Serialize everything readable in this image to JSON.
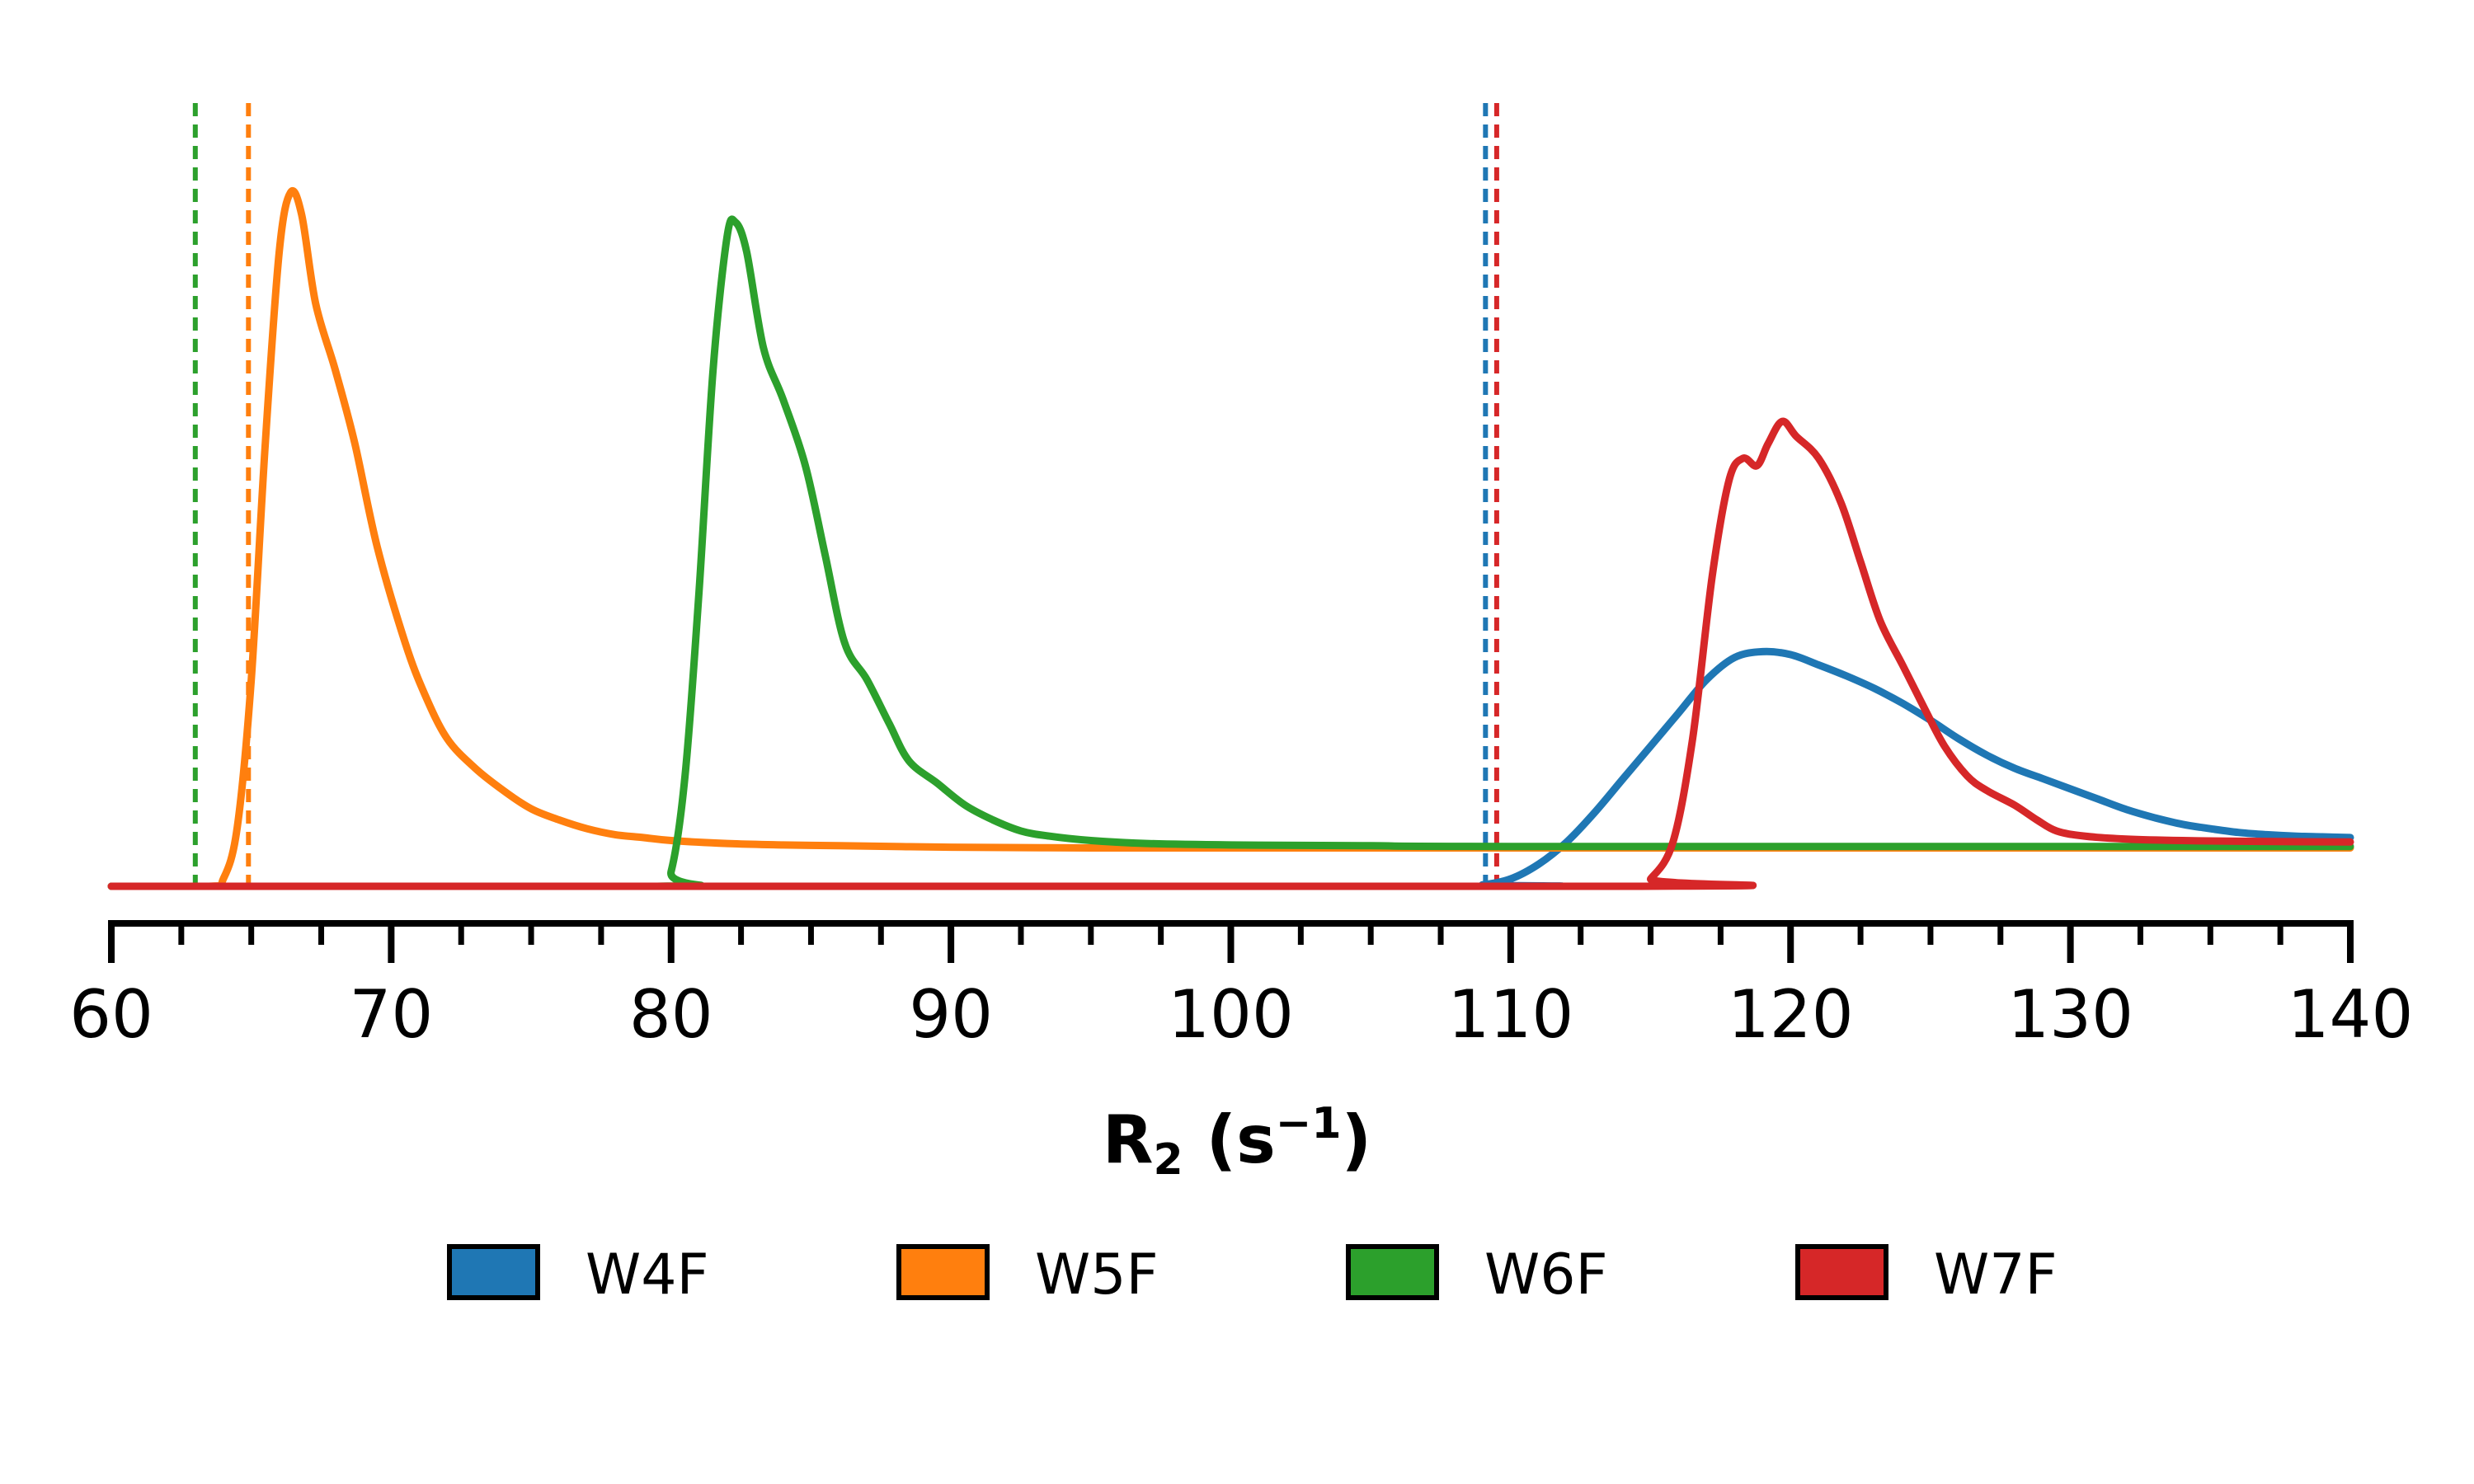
{
  "chart_data": {
    "type": "area",
    "xlabel": {
      "base": "R",
      "subscript": "2",
      "open": " (s",
      "superscript": "−1",
      "close": ")"
    },
    "xlim": [
      60,
      140
    ],
    "x_ticks": [
      60,
      70,
      80,
      90,
      100,
      110,
      120,
      130,
      140
    ],
    "x_minor_step": 2.5,
    "y_axis_visible": false,
    "grid": false,
    "legend_position": "bottom",
    "series": [
      {
        "name": "W4F",
        "color": "#1f77b4",
        "reference_line": 109.1,
        "points": [
          [
            60,
            0
          ],
          [
            108,
            0
          ],
          [
            109,
            0.002
          ],
          [
            110,
            0.01
          ],
          [
            111,
            0.03
          ],
          [
            112,
            0.06
          ],
          [
            113,
            0.1
          ],
          [
            114,
            0.145
          ],
          [
            115,
            0.19
          ],
          [
            116,
            0.235
          ],
          [
            117,
            0.28
          ],
          [
            118,
            0.31
          ],
          [
            119,
            0.318
          ],
          [
            120,
            0.314
          ],
          [
            121,
            0.3
          ],
          [
            122,
            0.285
          ],
          [
            123,
            0.268
          ],
          [
            124,
            0.248
          ],
          [
            125,
            0.225
          ],
          [
            126,
            0.2
          ],
          [
            127,
            0.178
          ],
          [
            128,
            0.16
          ],
          [
            129,
            0.146
          ],
          [
            130,
            0.132
          ],
          [
            131,
            0.118
          ],
          [
            132,
            0.104
          ],
          [
            133,
            0.093
          ],
          [
            134,
            0.084
          ],
          [
            135,
            0.078
          ],
          [
            136,
            0.073
          ],
          [
            137,
            0.07
          ],
          [
            138,
            0.068
          ],
          [
            139,
            0.067
          ],
          [
            140,
            0.066
          ]
        ]
      },
      {
        "name": "W5F",
        "color": "#ff7f0e",
        "reference_line": 64.9,
        "points": [
          [
            60,
            0
          ],
          [
            63.5,
            0
          ],
          [
            64,
            0.01
          ],
          [
            64.5,
            0.08
          ],
          [
            65,
            0.28
          ],
          [
            65.5,
            0.6
          ],
          [
            66,
            0.86
          ],
          [
            66.4,
            0.94
          ],
          [
            66.8,
            0.91
          ],
          [
            67.3,
            0.79
          ],
          [
            68,
            0.7
          ],
          [
            68.7,
            0.6
          ],
          [
            69.5,
            0.46
          ],
          [
            70.5,
            0.33
          ],
          [
            71.2,
            0.26
          ],
          [
            72,
            0.2
          ],
          [
            73,
            0.16
          ],
          [
            74,
            0.13
          ],
          [
            75,
            0.105
          ],
          [
            76,
            0.09
          ],
          [
            77,
            0.078
          ],
          [
            78,
            0.07
          ],
          [
            79,
            0.066
          ],
          [
            80,
            0.062
          ],
          [
            82,
            0.058
          ],
          [
            84,
            0.056
          ],
          [
            86,
            0.055
          ],
          [
            88,
            0.054
          ],
          [
            90,
            0.053
          ],
          [
            95,
            0.052
          ],
          [
            100,
            0.052
          ],
          [
            140,
            0.052
          ]
        ]
      },
      {
        "name": "W6F",
        "color": "#2ca02c",
        "reference_line": 63.0,
        "points": [
          [
            60,
            0
          ],
          [
            79.5,
            0
          ],
          [
            80,
            0.02
          ],
          [
            80.5,
            0.15
          ],
          [
            81,
            0.4
          ],
          [
            81.5,
            0.7
          ],
          [
            82,
            0.88
          ],
          [
            82.3,
            0.9
          ],
          [
            82.7,
            0.86
          ],
          [
            83.3,
            0.73
          ],
          [
            84,
            0.66
          ],
          [
            84.8,
            0.57
          ],
          [
            85.5,
            0.45
          ],
          [
            86.2,
            0.33
          ],
          [
            87,
            0.28
          ],
          [
            87.8,
            0.22
          ],
          [
            88.5,
            0.17
          ],
          [
            89.5,
            0.14
          ],
          [
            90.5,
            0.11
          ],
          [
            91.5,
            0.09
          ],
          [
            92.5,
            0.075
          ],
          [
            93.5,
            0.068
          ],
          [
            95,
            0.062
          ],
          [
            97,
            0.058
          ],
          [
            100,
            0.056
          ],
          [
            105,
            0.055
          ],
          [
            110,
            0.054
          ],
          [
            140,
            0.054
          ]
        ]
      },
      {
        "name": "W7F",
        "color": "#d62728",
        "reference_line": 109.5,
        "points": [
          [
            60,
            0
          ],
          [
            114.5,
            0
          ],
          [
            115,
            0.01
          ],
          [
            115.8,
            0.06
          ],
          [
            116.5,
            0.2
          ],
          [
            117.2,
            0.42
          ],
          [
            117.8,
            0.55
          ],
          [
            118.3,
            0.58
          ],
          [
            118.8,
            0.57
          ],
          [
            119.2,
            0.6
          ],
          [
            119.7,
            0.63
          ],
          [
            120.2,
            0.61
          ],
          [
            121,
            0.58
          ],
          [
            121.8,
            0.52
          ],
          [
            122.5,
            0.44
          ],
          [
            123.2,
            0.36
          ],
          [
            124,
            0.3
          ],
          [
            124.8,
            0.24
          ],
          [
            125.5,
            0.19
          ],
          [
            126.3,
            0.15
          ],
          [
            127,
            0.13
          ],
          [
            128,
            0.11
          ],
          [
            128.8,
            0.09
          ],
          [
            129.5,
            0.075
          ],
          [
            130.5,
            0.068
          ],
          [
            132,
            0.064
          ],
          [
            134,
            0.062
          ],
          [
            136,
            0.061
          ],
          [
            140,
            0.06
          ]
        ]
      }
    ]
  },
  "legend": {
    "items": [
      {
        "label": "W4F",
        "color": "#1f77b4"
      },
      {
        "label": "W5F",
        "color": "#ff7f0e"
      },
      {
        "label": "W6F",
        "color": "#2ca02c"
      },
      {
        "label": "W7F",
        "color": "#d62728"
      }
    ]
  }
}
